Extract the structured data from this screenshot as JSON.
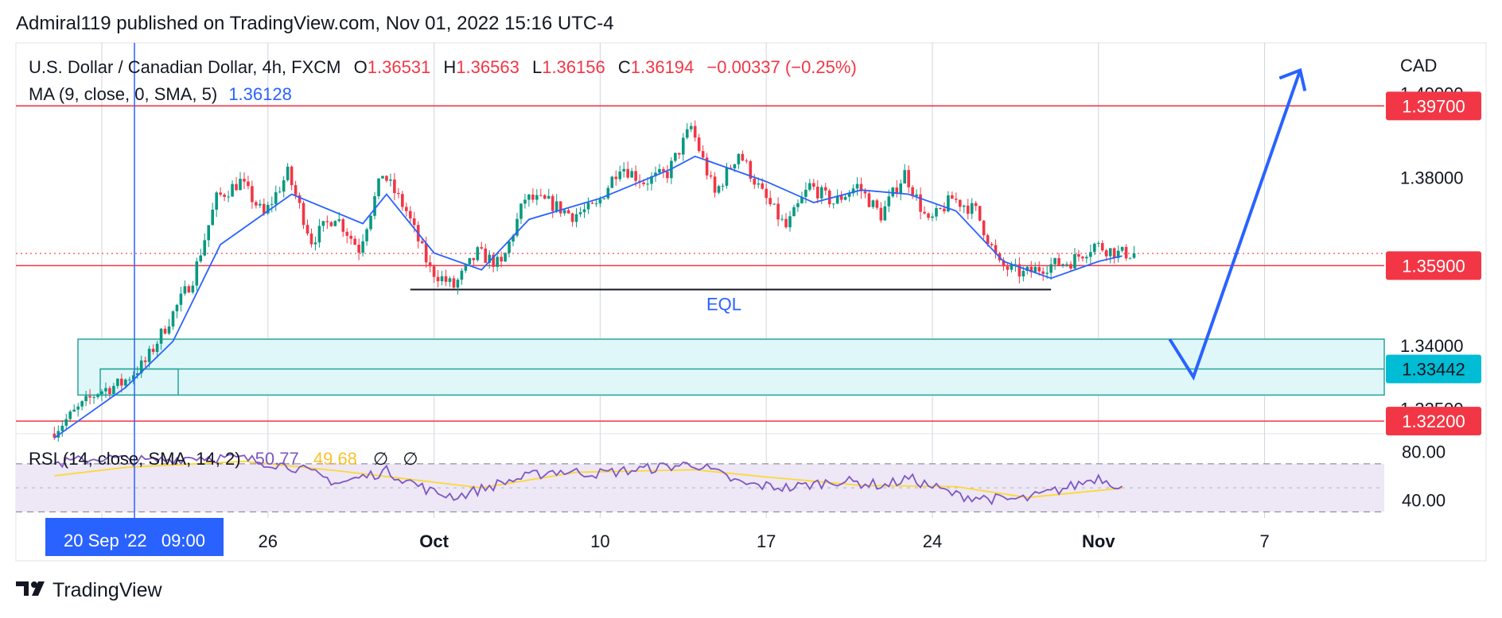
{
  "header": {
    "published": "Admiral119 published on TradingView.com, Nov 01, 2022 15:16 UTC-4"
  },
  "legend": {
    "symbol": "U.S. Dollar / Canadian Dollar, 4h, FXCM",
    "o_label": "O",
    "o_value": "1.36531",
    "h_label": "H",
    "h_value": "1.36563",
    "l_label": "L",
    "l_value": "1.36156",
    "c_label": "C",
    "c_value": "1.36194",
    "change": "−0.00337 (−0.25%)",
    "ma_label": "MA (9, close, 0, SMA, 5)",
    "ma_value": "1.36128"
  },
  "rsi_legend": {
    "label": "RSI (14, close, SMA, 14, 2)",
    "v1": "50.77",
    "v2": "49.68",
    "icons": [
      "∅",
      "∅"
    ]
  },
  "axis": {
    "currency": "CAD",
    "price_ticks": [
      "1.40000",
      "1.38000",
      "1.34000",
      "1.32500"
    ],
    "rsi_ticks": [
      "80.00",
      "40.00"
    ],
    "time_ticks": [
      "26",
      "Oct",
      "10",
      "17",
      "24",
      "Nov",
      "7"
    ],
    "crosshair_date": "20 Sep '22   09:00"
  },
  "levels": {
    "resistance": "1.39700",
    "support_mid": "1.35900",
    "zone_mid": "1.33442",
    "support_low": "1.32200"
  },
  "annotations": {
    "eql": "EQL"
  },
  "footer": {
    "brand": "TradingView"
  },
  "colors": {
    "up": "#089981",
    "down": "#f23645",
    "ma": "#2962ff",
    "level": "#f23645",
    "zone_fill": "#e0f7fa",
    "zone_border": "#26a69a",
    "rsi": "#7e57c2",
    "rsi_ma": "#fdd835",
    "rsi_band": "#ede7f6",
    "arrow": "#2962ff",
    "crosshair": "#2962ff"
  },
  "chart_data": {
    "type": "candlestick",
    "price_range": [
      1.319,
      1.412
    ],
    "rsi_range": [
      25,
      95
    ],
    "horizontal_levels": [
      1.397,
      1.359,
      1.3344,
      1.322
    ],
    "demand_zone": [
      1.3282,
      1.3415
    ],
    "eql_level": 1.3533,
    "current_price_line": 1.3619,
    "projection": {
      "path": [
        [
          "2022-11-03",
          1.3415
        ],
        [
          "2022-11-04",
          1.3325
        ],
        [
          "2022-11-08 12:00",
          1.4055
        ]
      ],
      "arrowhead": true
    },
    "key_points": [
      [
        "2022-09-17",
        1.319
      ],
      [
        "2022-09-19",
        1.329
      ],
      [
        "2022-09-20",
        1.331
      ],
      [
        "2022-09-21",
        1.336
      ],
      [
        "2022-09-22",
        1.346
      ],
      [
        "2022-09-23",
        1.356
      ],
      [
        "2022-09-24",
        1.375
      ],
      [
        "2022-09-25",
        1.379
      ],
      [
        "2022-09-26",
        1.371
      ],
      [
        "2022-09-27",
        1.381
      ],
      [
        "2022-09-28",
        1.365
      ],
      [
        "2022-09-29",
        1.371
      ],
      [
        "2022-09-30",
        1.363
      ],
      [
        "2022-10-01",
        1.381
      ],
      [
        "2022-10-02",
        1.372
      ],
      [
        "2022-10-03",
        1.358
      ],
      [
        "2022-10-04",
        1.354
      ],
      [
        "2022-10-05",
        1.362
      ],
      [
        "2022-10-06",
        1.359
      ],
      [
        "2022-10-07",
        1.375
      ],
      [
        "2022-10-08",
        1.374
      ],
      [
        "2022-10-09",
        1.371
      ],
      [
        "2022-10-10",
        1.373
      ],
      [
        "2022-10-11",
        1.383
      ],
      [
        "2022-10-12",
        1.379
      ],
      [
        "2022-10-13",
        1.381
      ],
      [
        "2022-10-14",
        1.392
      ],
      [
        "2022-10-15",
        1.376
      ],
      [
        "2022-10-16",
        1.386
      ],
      [
        "2022-10-17",
        1.376
      ],
      [
        "2022-10-18",
        1.368
      ],
      [
        "2022-10-19",
        1.378
      ],
      [
        "2022-10-20",
        1.374
      ],
      [
        "2022-10-21",
        1.378
      ],
      [
        "2022-10-22",
        1.371
      ],
      [
        "2022-10-23",
        1.381
      ],
      [
        "2022-10-24",
        1.369
      ],
      [
        "2022-10-25",
        1.375
      ],
      [
        "2022-10-26",
        1.372
      ],
      [
        "2022-10-27",
        1.359
      ],
      [
        "2022-10-28",
        1.357
      ],
      [
        "2022-10-29",
        1.359
      ],
      [
        "2022-10-30",
        1.36
      ],
      [
        "2022-10-31",
        1.364
      ],
      [
        "2022-11-01",
        1.3619
      ]
    ],
    "ma_points": [
      [
        "2022-09-17",
        1.318
      ],
      [
        "2022-09-20",
        1.33
      ],
      [
        "2022-09-22",
        1.341
      ],
      [
        "2022-09-24",
        1.364
      ],
      [
        "2022-09-27",
        1.376
      ],
      [
        "2022-09-30",
        1.369
      ],
      [
        "2022-10-01",
        1.376
      ],
      [
        "2022-10-03",
        1.362
      ],
      [
        "2022-10-05",
        1.358
      ],
      [
        "2022-10-07",
        1.37
      ],
      [
        "2022-10-10",
        1.375
      ],
      [
        "2022-10-13",
        1.382
      ],
      [
        "2022-10-14",
        1.385
      ],
      [
        "2022-10-17",
        1.379
      ],
      [
        "2022-10-19",
        1.374
      ],
      [
        "2022-10-21",
        1.377
      ],
      [
        "2022-10-23",
        1.376
      ],
      [
        "2022-10-25",
        1.372
      ],
      [
        "2022-10-27",
        1.36
      ],
      [
        "2022-10-29",
        1.356
      ],
      [
        "2022-10-31",
        1.36
      ],
      [
        "2022-11-01",
        1.3613
      ]
    ],
    "rsi_points": [
      [
        "2022-09-17",
        70
      ],
      [
        "2022-09-19",
        75
      ],
      [
        "2022-09-21",
        72
      ],
      [
        "2022-09-23",
        76
      ],
      [
        "2022-09-25",
        74
      ],
      [
        "2022-09-27",
        68
      ],
      [
        "2022-09-29",
        54
      ],
      [
        "2022-10-01",
        64
      ],
      [
        "2022-10-03",
        46
      ],
      [
        "2022-10-04",
        43
      ],
      [
        "2022-10-06",
        55
      ],
      [
        "2022-10-08",
        64
      ],
      [
        "2022-10-10",
        62
      ],
      [
        "2022-10-12",
        66
      ],
      [
        "2022-10-14",
        70
      ],
      [
        "2022-10-16",
        53
      ],
      [
        "2022-10-18",
        50
      ],
      [
        "2022-10-20",
        56
      ],
      [
        "2022-10-22",
        52
      ],
      [
        "2022-10-23",
        58
      ],
      [
        "2022-10-25",
        44
      ],
      [
        "2022-10-27",
        40
      ],
      [
        "2022-10-28",
        41
      ],
      [
        "2022-10-30",
        52
      ],
      [
        "2022-10-31",
        59
      ],
      [
        "2022-11-01",
        50.77
      ]
    ],
    "rsi_ma_points": [
      [
        "2022-09-17",
        60
      ],
      [
        "2022-09-20",
        67
      ],
      [
        "2022-09-25",
        72
      ],
      [
        "2022-09-29",
        64
      ],
      [
        "2022-10-02",
        57
      ],
      [
        "2022-10-05",
        50
      ],
      [
        "2022-10-09",
        63
      ],
      [
        "2022-10-14",
        65
      ],
      [
        "2022-10-17",
        59
      ],
      [
        "2022-10-21",
        52
      ],
      [
        "2022-10-25",
        51
      ],
      [
        "2022-10-28",
        42
      ],
      [
        "2022-11-01",
        49.68
      ]
    ],
    "rsi_levels": [
      70,
      50,
      30
    ]
  }
}
